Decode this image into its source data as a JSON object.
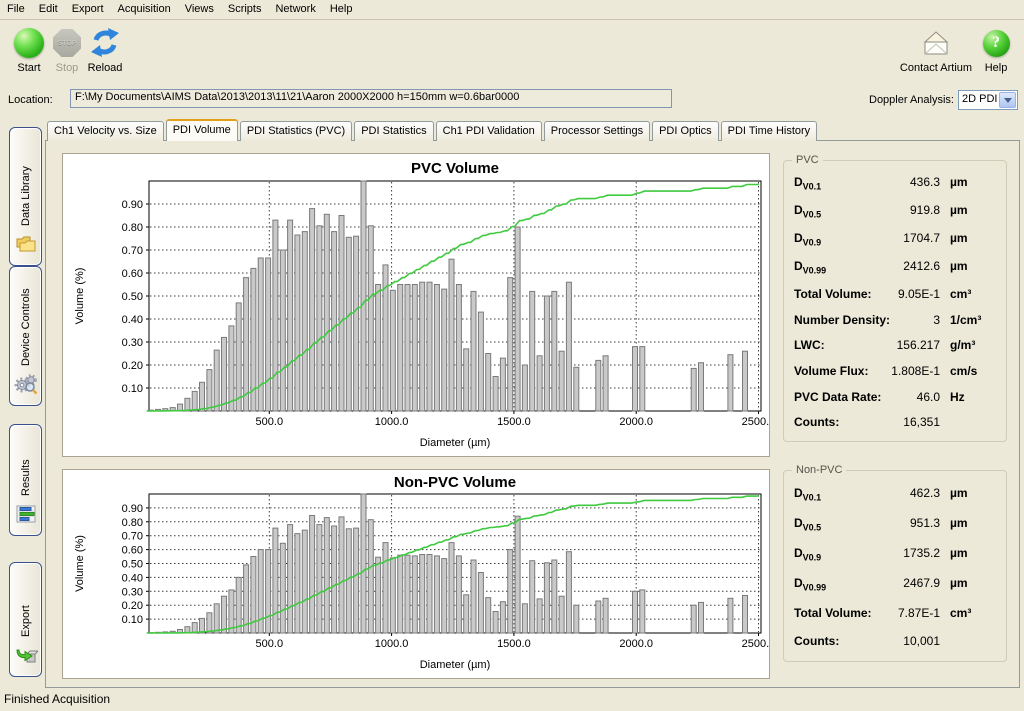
{
  "menu": {
    "items": [
      "File",
      "Edit",
      "Export",
      "Acquisition",
      "Views",
      "Scripts",
      "Network",
      "Help"
    ]
  },
  "toolbar": {
    "start_label": "Start",
    "stop_label": "Stop",
    "stop_icon_text": "STOP",
    "reload_label": "Reload",
    "contact_label": "Contact Artium",
    "help_label": "Help",
    "help_icon_text": "?"
  },
  "location": {
    "label": "Location:",
    "value": "F:\\My Documents\\AIMS Data\\2013\\2013\\11\\21\\Aaron 2000X2000  h=150mm w=0.6bar0000"
  },
  "doppler": {
    "label": "Doppler Analysis:",
    "value": "2D PDI"
  },
  "tabs": {
    "active": "PDI Volume",
    "items": [
      "Ch1 Velocity vs. Size",
      "PDI Volume",
      "PDI Statistics (PVC)",
      "PDI Statistics",
      "Ch1 PDI Validation",
      "Processor Settings",
      "PDI Optics",
      "PDI Time History"
    ]
  },
  "sidebar": {
    "items": [
      {
        "label": "Data Library",
        "icon": "folders-icon"
      },
      {
        "label": "Device Controls",
        "icon": "gears-icon"
      },
      {
        "label": "Results",
        "icon": "bar-chart-icon"
      },
      {
        "label": "Export",
        "icon": "export-icon"
      }
    ]
  },
  "chart_data": [
    {
      "type": "bar",
      "title": "PVC Volume",
      "xlabel": "Diameter (µm)",
      "ylabel": "Volume (%)",
      "xlim": [
        0,
        2510
      ],
      "ylim": [
        0,
        1.0
      ],
      "grid": true,
      "legend": "none",
      "bin_width_um": 30,
      "xticks": [
        500,
        1000,
        1500,
        2000,
        2500
      ],
      "xtick_labels": [
        "500.0",
        "1000.0",
        "1500.0",
        "2000.0",
        "2500.0"
      ],
      "yticks": [
        0.1,
        0.2,
        0.3,
        0.4,
        0.5,
        0.6,
        0.7,
        0.8,
        0.9
      ],
      "ytick_labels": [
        "0.10",
        "0.20",
        "0.30",
        "0.40",
        "0.50",
        "0.60",
        "0.70",
        "0.80",
        "0.90"
      ],
      "series": [
        {
          "name": "volume-histogram",
          "type": "bar",
          "points": [
            [
              15,
              0.004
            ],
            [
              45,
              0.007
            ],
            [
              75,
              0.01
            ],
            [
              105,
              0.015
            ],
            [
              135,
              0.03
            ],
            [
              165,
              0.055
            ],
            [
              195,
              0.085
            ],
            [
              225,
              0.125
            ],
            [
              255,
              0.18
            ],
            [
              285,
              0.265
            ],
            [
              315,
              0.32
            ],
            [
              345,
              0.37
            ],
            [
              375,
              0.47
            ],
            [
              405,
              0.58
            ],
            [
              435,
              0.62
            ],
            [
              465,
              0.665
            ],
            [
              495,
              0.665
            ],
            [
              525,
              0.83
            ],
            [
              555,
              0.7
            ],
            [
              585,
              0.83
            ],
            [
              615,
              0.765
            ],
            [
              645,
              0.78
            ],
            [
              675,
              0.88
            ],
            [
              705,
              0.805
            ],
            [
              735,
              0.855
            ],
            [
              765,
              0.78
            ],
            [
              795,
              0.85
            ],
            [
              825,
              0.755
            ],
            [
              855,
              0.76
            ],
            [
              885,
              1.0
            ],
            [
              915,
              0.805
            ],
            [
              945,
              0.55
            ],
            [
              975,
              0.635
            ],
            [
              1005,
              0.525
            ],
            [
              1035,
              0.55
            ],
            [
              1065,
              0.55
            ],
            [
              1095,
              0.55
            ],
            [
              1125,
              0.56
            ],
            [
              1155,
              0.56
            ],
            [
              1185,
              0.55
            ],
            [
              1215,
              0.53
            ],
            [
              1245,
              0.66
            ],
            [
              1275,
              0.55
            ],
            [
              1305,
              0.27
            ],
            [
              1335,
              0.52
            ],
            [
              1365,
              0.43
            ],
            [
              1395,
              0.25
            ],
            [
              1425,
              0.15
            ],
            [
              1455,
              0.23
            ],
            [
              1485,
              0.58
            ],
            [
              1515,
              0.8
            ],
            [
              1545,
              0.2
            ],
            [
              1575,
              0.52
            ],
            [
              1605,
              0.24
            ],
            [
              1635,
              0.5
            ],
            [
              1665,
              0.52
            ],
            [
              1695,
              0.26
            ],
            [
              1725,
              0.56
            ],
            [
              1755,
              0.19
            ],
            [
              1845,
              0.22
            ],
            [
              1875,
              0.24
            ],
            [
              1995,
              0.28
            ],
            [
              2025,
              0.28
            ],
            [
              2235,
              0.185
            ],
            [
              2265,
              0.21
            ],
            [
              2385,
              0.245
            ],
            [
              2445,
              0.26
            ]
          ]
        },
        {
          "name": "cumulative-volume",
          "type": "line",
          "derived": "running cumulative of histogram normalized to 1.0 at top of axis"
        }
      ],
      "colors": {
        "bar_fill": "#c9c9c9",
        "bar_stroke": "#7a7a7a",
        "line": "#3fca3f"
      }
    },
    {
      "type": "bar",
      "title": "Non-PVC Volume",
      "xlabel": "Diameter (µm)",
      "ylabel": "Volume (%)",
      "xlim": [
        0,
        2510
      ],
      "ylim": [
        0,
        1.0
      ],
      "grid": true,
      "legend": "none",
      "bin_width_um": 30,
      "xticks": [
        500,
        1000,
        1500,
        2000,
        2500
      ],
      "xtick_labels": [
        "500.0",
        "1000.0",
        "1500.0",
        "2000.0",
        "2500.0"
      ],
      "yticks": [
        0.1,
        0.2,
        0.3,
        0.4,
        0.5,
        0.6,
        0.7,
        0.8,
        0.9
      ],
      "ytick_labels": [
        "0.10",
        "0.20",
        "0.30",
        "0.40",
        "0.50",
        "0.60",
        "0.70",
        "0.80",
        "0.90"
      ],
      "series": [
        {
          "name": "volume-histogram",
          "type": "bar",
          "points": [
            [
              15,
              0.003
            ],
            [
              45,
              0.005
            ],
            [
              75,
              0.008
            ],
            [
              105,
              0.012
            ],
            [
              135,
              0.025
            ],
            [
              165,
              0.045
            ],
            [
              195,
              0.075
            ],
            [
              225,
              0.105
            ],
            [
              255,
              0.145
            ],
            [
              285,
              0.21
            ],
            [
              315,
              0.265
            ],
            [
              345,
              0.31
            ],
            [
              375,
              0.4
            ],
            [
              405,
              0.49
            ],
            [
              435,
              0.55
            ],
            [
              465,
              0.6
            ],
            [
              495,
              0.6
            ],
            [
              525,
              0.755
            ],
            [
              555,
              0.645
            ],
            [
              585,
              0.78
            ],
            [
              615,
              0.715
            ],
            [
              645,
              0.74
            ],
            [
              675,
              0.845
            ],
            [
              705,
              0.78
            ],
            [
              735,
              0.83
            ],
            [
              765,
              0.77
            ],
            [
              795,
              0.835
            ],
            [
              825,
              0.75
            ],
            [
              855,
              0.755
            ],
            [
              885,
              1.0
            ],
            [
              915,
              0.815
            ],
            [
              945,
              0.545
            ],
            [
              975,
              0.65
            ],
            [
              1005,
              0.54
            ],
            [
              1035,
              0.56
            ],
            [
              1065,
              0.56
            ],
            [
              1095,
              0.555
            ],
            [
              1125,
              0.565
            ],
            [
              1155,
              0.565
            ],
            [
              1185,
              0.555
            ],
            [
              1215,
              0.535
            ],
            [
              1245,
              0.65
            ],
            [
              1275,
              0.555
            ],
            [
              1305,
              0.275
            ],
            [
              1335,
              0.525
            ],
            [
              1365,
              0.435
            ],
            [
              1395,
              0.255
            ],
            [
              1425,
              0.155
            ],
            [
              1455,
              0.225
            ],
            [
              1485,
              0.6
            ],
            [
              1515,
              0.84
            ],
            [
              1545,
              0.21
            ],
            [
              1575,
              0.52
            ],
            [
              1605,
              0.245
            ],
            [
              1635,
              0.505
            ],
            [
              1665,
              0.525
            ],
            [
              1695,
              0.265
            ],
            [
              1725,
              0.585
            ],
            [
              1755,
              0.2
            ],
            [
              1845,
              0.23
            ],
            [
              1875,
              0.25
            ],
            [
              1995,
              0.3
            ],
            [
              2025,
              0.31
            ],
            [
              2235,
              0.2
            ],
            [
              2265,
              0.22
            ],
            [
              2385,
              0.25
            ],
            [
              2445,
              0.27
            ]
          ]
        },
        {
          "name": "cumulative-volume",
          "type": "line",
          "derived": "running cumulative of histogram normalized to 1.0 at top of axis"
        }
      ],
      "colors": {
        "bar_fill": "#c9c9c9",
        "bar_stroke": "#7a7a7a",
        "line": "#3fca3f"
      }
    }
  ],
  "stats": {
    "pvc": {
      "title": "PVC",
      "rows": [
        {
          "label": "D",
          "sub": "V0.1",
          "value": "436.3",
          "unit": "µm"
        },
        {
          "label": "D",
          "sub": "V0.5",
          "value": "919.8",
          "unit": "µm"
        },
        {
          "label": "D",
          "sub": "V0.9",
          "value": "1704.7",
          "unit": "µm"
        },
        {
          "label": "D",
          "sub": "V0.99",
          "value": "2412.6",
          "unit": "µm"
        },
        {
          "label": "Total Volume:",
          "sub": "",
          "value": "9.05E-1",
          "unit": "cm³"
        },
        {
          "label": "Number Density:",
          "sub": "",
          "value": "3",
          "unit": "1/cm³"
        },
        {
          "label": "LWC:",
          "sub": "",
          "value": "156.217",
          "unit": "g/m³"
        },
        {
          "label": "Volume Flux:",
          "sub": "",
          "value": "1.808E-1",
          "unit": "cm/s"
        },
        {
          "label": "PVC Data Rate:",
          "sub": "",
          "value": "46.0",
          "unit": "Hz"
        },
        {
          "label": "Counts:",
          "sub": "",
          "value": "16,351",
          "unit": ""
        }
      ]
    },
    "nonpvc": {
      "title": "Non-PVC",
      "rows": [
        {
          "label": "D",
          "sub": "V0.1",
          "value": "462.3",
          "unit": "µm"
        },
        {
          "label": "D",
          "sub": "V0.5",
          "value": "951.3",
          "unit": "µm"
        },
        {
          "label": "D",
          "sub": "V0.9",
          "value": "1735.2",
          "unit": "µm"
        },
        {
          "label": "D",
          "sub": "V0.99",
          "value": "2467.9",
          "unit": "µm"
        },
        {
          "label": "Total Volume:",
          "sub": "",
          "value": "7.87E-1",
          "unit": "cm³"
        },
        {
          "label": "Counts:",
          "sub": "",
          "value": "10,001",
          "unit": ""
        }
      ]
    }
  },
  "status_bar": {
    "text": "Finished Acquisition"
  }
}
